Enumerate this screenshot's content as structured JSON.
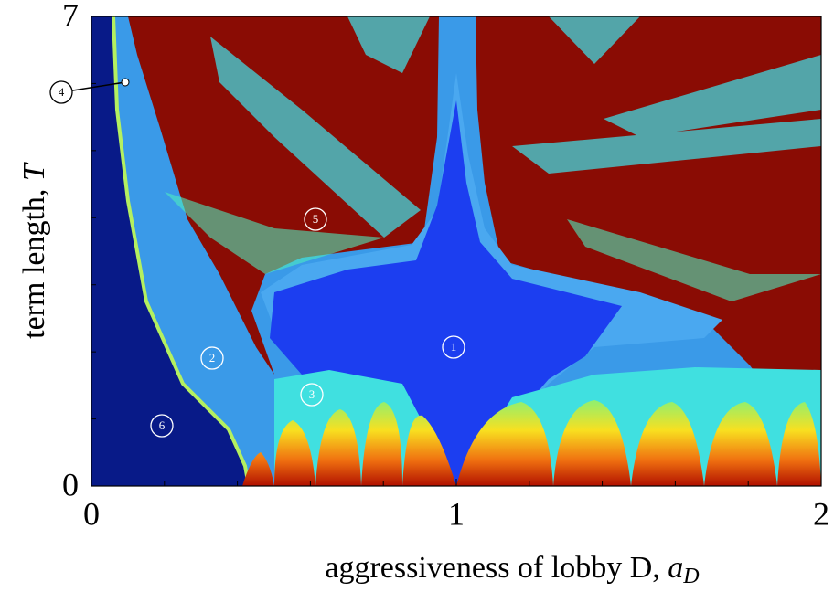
{
  "chart_data": {
    "type": "heatmap",
    "x_label": "aggressiveness of lobby D,",
    "x_label_symbol": "a",
    "x_label_subscript": "D",
    "y_label": "term length,",
    "y_label_symbol": "T",
    "xlim": [
      0,
      2
    ],
    "ylim": [
      0,
      7
    ],
    "xticks": [
      0,
      1,
      2
    ],
    "yticks": [
      0,
      7
    ],
    "xminorticks": [
      0.2,
      0.4,
      0.6,
      0.8,
      1.2,
      1.4,
      1.6,
      1.8
    ],
    "yminorticks": [
      1,
      2,
      3,
      4,
      5,
      6
    ],
    "annotations": [
      "1",
      "2",
      "3",
      "4",
      "5",
      "6"
    ]
  }
}
